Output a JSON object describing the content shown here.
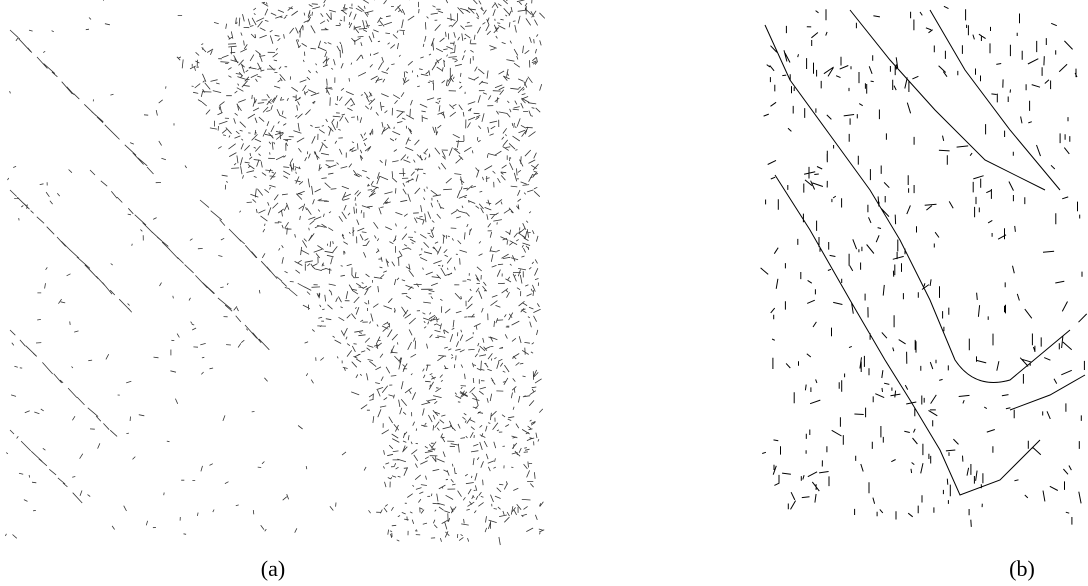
{
  "captions": [
    "(a)",
    "(b)"
  ]
}
